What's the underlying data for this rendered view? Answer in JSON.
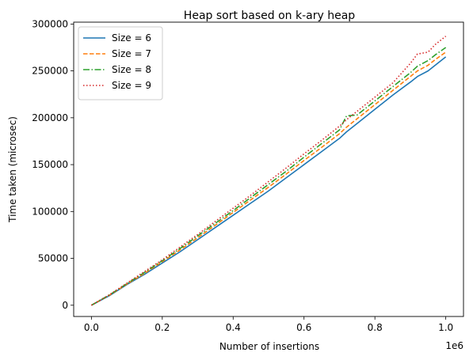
{
  "chart_data": {
    "type": "line",
    "title": "Heap sort based on k-ary heap",
    "xlabel": "Number of insertions",
    "ylabel": "Time taken (microsec)",
    "x_offset_text": "1e6",
    "xlim": [
      -0.05,
      1.05
    ],
    "ylim": [
      -12000,
      302000
    ],
    "xticks": [
      0.0,
      0.2,
      0.4,
      0.6,
      0.8,
      1.0
    ],
    "xtick_labels": [
      "0.0",
      "0.2",
      "0.4",
      "0.6",
      "0.8",
      "1.0"
    ],
    "yticks": [
      0,
      50000,
      100000,
      150000,
      200000,
      250000,
      300000
    ],
    "ytick_labels": [
      "0",
      "50000",
      "100000",
      "150000",
      "200000",
      "250000",
      "300000"
    ],
    "grid": false,
    "legend_position": "top-left",
    "x": [
      0.0,
      0.05,
      0.1,
      0.15,
      0.2,
      0.25,
      0.3,
      0.35,
      0.4,
      0.45,
      0.5,
      0.55,
      0.6,
      0.65,
      0.7,
      0.72,
      0.75,
      0.8,
      0.85,
      0.9,
      0.92,
      0.95,
      0.97,
      1.0
    ],
    "series": [
      {
        "name": "Size = 6",
        "color": "#1f77b4",
        "dash": "solid",
        "values": [
          0,
          10000,
          22000,
          33000,
          45000,
          57000,
          70000,
          83000,
          96000,
          109000,
          122000,
          136000,
          150000,
          164000,
          178000,
          185000,
          194000,
          209000,
          224000,
          238000,
          244000,
          250000,
          256000,
          265000
        ]
      },
      {
        "name": "Size = 7",
        "color": "#ff7f0e",
        "dash": "dashed",
        "values": [
          0,
          10500,
          22500,
          34000,
          46500,
          59000,
          72000,
          85500,
          99000,
          112500,
          126000,
          140000,
          154500,
          168500,
          183000,
          190000,
          199000,
          214000,
          229000,
          244000,
          250000,
          256000,
          262000,
          270000
        ]
      },
      {
        "name": "Size = 8",
        "color": "#2ca02c",
        "dash": "dashdot",
        "values": [
          0,
          10800,
          23000,
          35000,
          47500,
          60500,
          74000,
          87500,
          101000,
          115000,
          129000,
          143000,
          158000,
          172500,
          187000,
          202000,
          203000,
          218000,
          233000,
          248000,
          255000,
          261000,
          267000,
          275000
        ]
      },
      {
        "name": "Size = 9",
        "color": "#d62728",
        "dash": "dotted",
        "values": [
          0,
          11000,
          23500,
          36000,
          48500,
          62000,
          75500,
          89500,
          103500,
          117500,
          132000,
          146500,
          161500,
          176000,
          191000,
          198000,
          207000,
          222000,
          237000,
          258000,
          268000,
          270000,
          278000,
          287000
        ]
      }
    ]
  }
}
